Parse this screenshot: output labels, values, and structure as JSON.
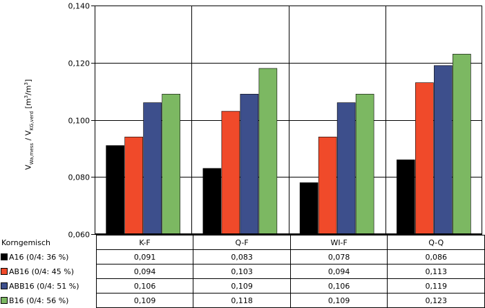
{
  "chart_data": {
    "type": "bar",
    "categories": [
      "K-F",
      "Q-F",
      "WI-F",
      "Q-Q"
    ],
    "series": [
      {
        "name": "A16 (0/4: 36 %)",
        "color": "#000000",
        "values": [
          0.091,
          0.083,
          0.078,
          0.086
        ],
        "labels": [
          "0,091",
          "0,083",
          "0,078",
          "0,086"
        ]
      },
      {
        "name": "AB16 (0/4: 45 %)",
        "color": "#f04a2a",
        "values": [
          0.094,
          0.103,
          0.094,
          0.113
        ],
        "labels": [
          "0,094",
          "0,103",
          "0,094",
          "0,113"
        ]
      },
      {
        "name": "ABB16 (0/4: 51 %)",
        "color": "#3d4f8c",
        "values": [
          0.106,
          0.109,
          0.106,
          0.119
        ],
        "labels": [
          "0,106",
          "0,109",
          "0,106",
          "0,119"
        ]
      },
      {
        "name": "B16 (0/4: 56 %)",
        "color": "#7cb862",
        "values": [
          0.109,
          0.118,
          0.109,
          0.123
        ],
        "labels": [
          "0,109",
          "0,118",
          "0,109",
          "0,123"
        ]
      }
    ],
    "ylim": [
      0.06,
      0.14
    ],
    "yticks": [
      0.06,
      0.08,
      0.1,
      0.12,
      0.14
    ],
    "ytick_labels": [
      "0,060",
      "0,080",
      "0,100",
      "0,120",
      "0,140"
    ],
    "ylabel": {
      "v1": "V",
      "s1": "Wa,mess",
      "sep": " / V",
      "s2": "KG,verd",
      "units": " [m",
      "e1": "3",
      "mid": "/m",
      "e2": "3",
      "end": "]"
    },
    "table_header": "Korngemisch",
    "grid": true,
    "legend": "table-below"
  }
}
